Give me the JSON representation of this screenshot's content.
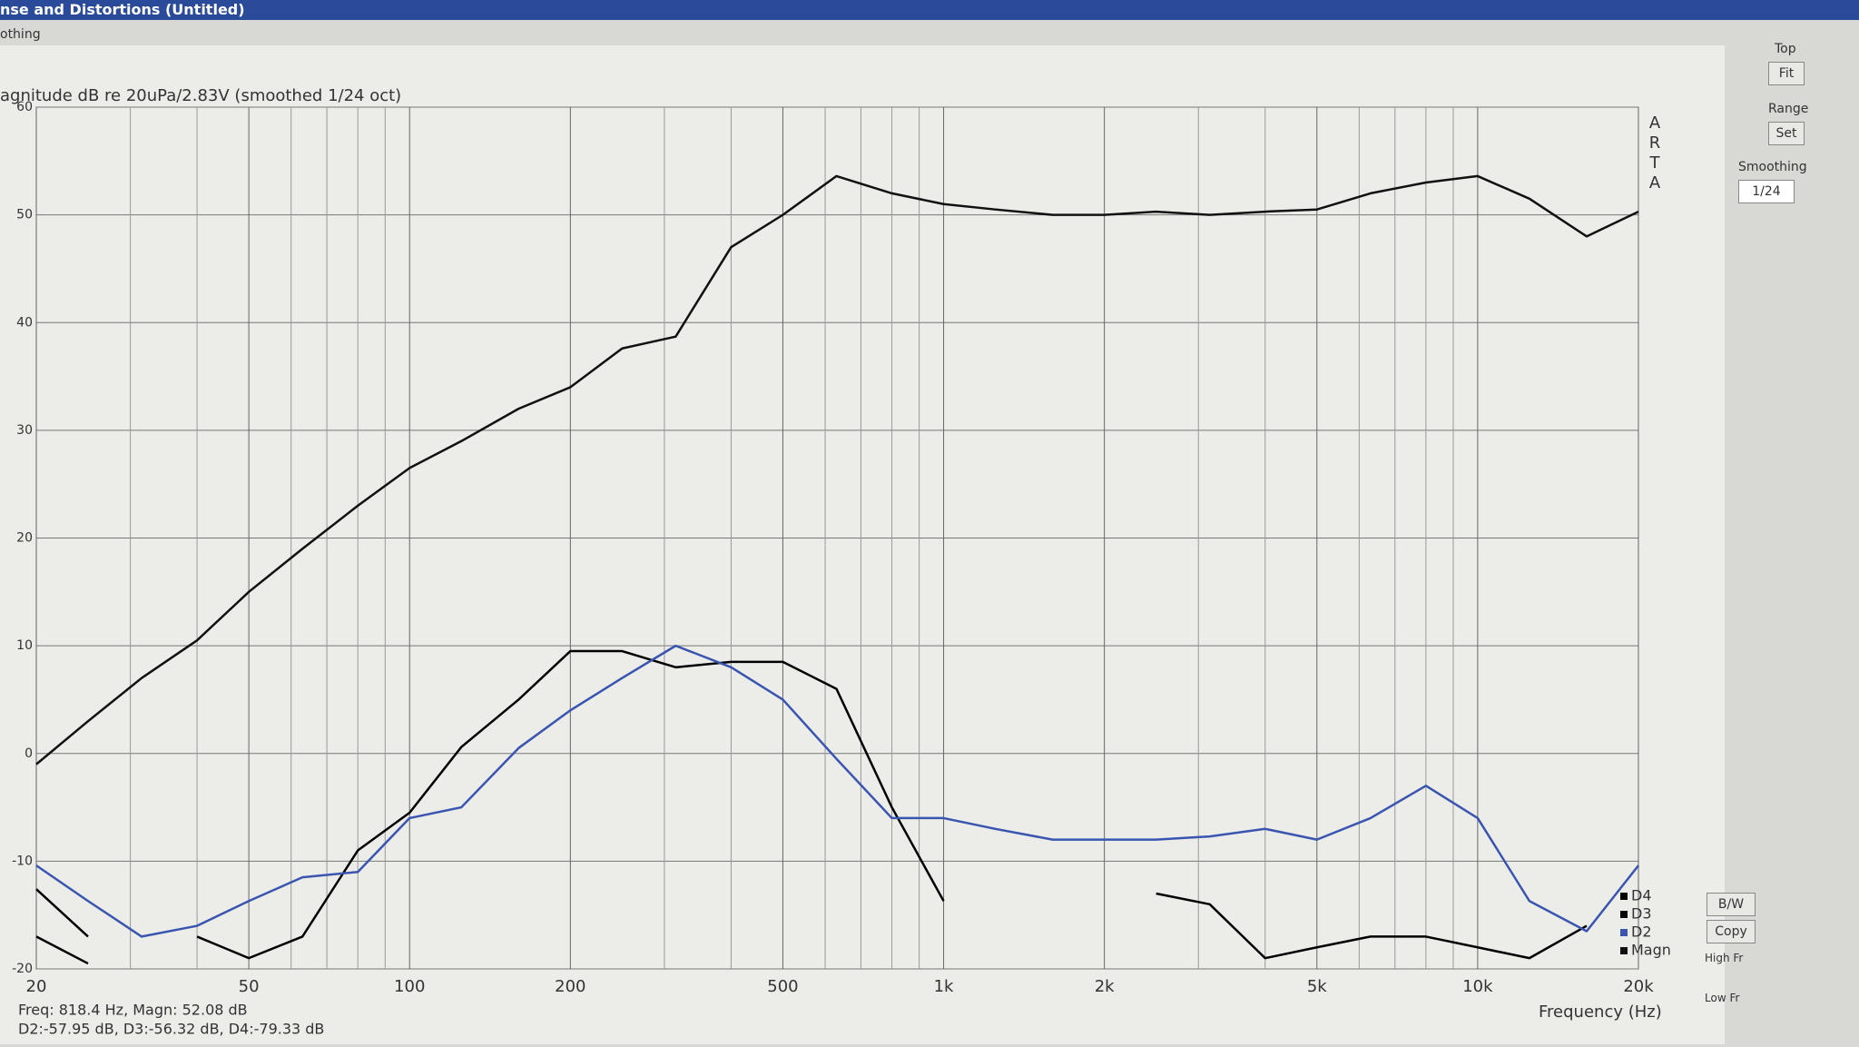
{
  "window": {
    "title": "nse and Distortions (Untitled)",
    "menu": "othing"
  },
  "chart_data": {
    "type": "line",
    "title": "agnitude dB re 20uPa/2.83V (smoothed 1/24 oct)",
    "watermark": "ARTA",
    "x_label": "Frequency (Hz)",
    "log_x": true,
    "grid": true,
    "legend": "bottom-right",
    "xlim": [
      20,
      20000
    ],
    "ylim": [
      -20,
      60
    ],
    "xticks": [
      20,
      50,
      100,
      200,
      500,
      {
        "value": 1000,
        "label": "1k"
      },
      {
        "value": 2000,
        "label": "2k"
      },
      {
        "value": 5000,
        "label": "5k"
      },
      {
        "value": 10000,
        "label": "10k"
      },
      {
        "value": 20000,
        "label": "20k"
      }
    ],
    "xgrid": [
      30,
      40,
      60,
      70,
      80,
      90,
      300,
      400,
      600,
      700,
      800,
      900,
      3000,
      4000,
      6000,
      7000,
      8000,
      9000
    ],
    "yticks": [
      -20,
      -10,
      0,
      10,
      20,
      30,
      40,
      50,
      60
    ],
    "x": [
      20,
      25,
      31.5,
      40,
      50,
      63,
      80,
      100,
      125,
      160,
      200,
      250,
      315,
      400,
      500,
      630,
      800,
      1000,
      1250,
      1600,
      2000,
      2500,
      3150,
      4000,
      5000,
      6300,
      8000,
      10000,
      12500,
      16000,
      20000
    ],
    "series": [
      {
        "name": "D4",
        "color": "#000000",
        "values": [
          -17,
          -19.5,
          null,
          null,
          null,
          null,
          null,
          null,
          null,
          null,
          null,
          null,
          null,
          null,
          null,
          null,
          null,
          null,
          null,
          null,
          null,
          -13,
          -14,
          -19,
          -18,
          -17,
          -17,
          -18,
          -19,
          -16,
          null
        ]
      },
      {
        "name": "D3",
        "color": "#000000",
        "values": [
          -12.6,
          -17,
          null,
          -17,
          -19,
          -17,
          -9,
          -5.5,
          0.6,
          5,
          9.5,
          9.5,
          8,
          8.5,
          8.5,
          6,
          -5,
          -13.7,
          null,
          null,
          null,
          null,
          null,
          null,
          null,
          null,
          null,
          null,
          null,
          null,
          null
        ]
      },
      {
        "name": "D2",
        "color": "#3a55b0",
        "values": [
          -10.4,
          -13.7,
          -17,
          -16,
          -13.7,
          -11.5,
          -11,
          -6,
          -5,
          0.5,
          4,
          7,
          10,
          8,
          5,
          -0.5,
          -6,
          -6,
          -7,
          -8,
          -8,
          -8,
          -7.7,
          -7,
          -8,
          -6,
          -3,
          -6,
          -13.7,
          -16.5,
          -10.4
        ]
      },
      {
        "name": "Magn",
        "color": "#111111",
        "values": [
          -1,
          3,
          7,
          10.5,
          15,
          19,
          23,
          26.5,
          29,
          32,
          34,
          37.6,
          38.7,
          47,
          50,
          53.6,
          52,
          51,
          50.5,
          50,
          50,
          50.3,
          50,
          50.3,
          50.5,
          52,
          53,
          53.6,
          51.5,
          48,
          50.3
        ]
      }
    ]
  },
  "readout": {
    "line1": "Freq: 818.4 Hz, Magn: 52.08 dB",
    "line2": "D2:-57.95 dB, D3:-56.32 dB, D4:-79.33 dB"
  },
  "panel": {
    "top": "Top",
    "fit": "Fit",
    "range": "Range",
    "set": "Set",
    "smoothing": "Smoothing",
    "smoothing_value": "1/24",
    "bw": "B/W",
    "copy": "Copy",
    "high_fr": "High Fr",
    "low_fr": "Low Fr"
  }
}
